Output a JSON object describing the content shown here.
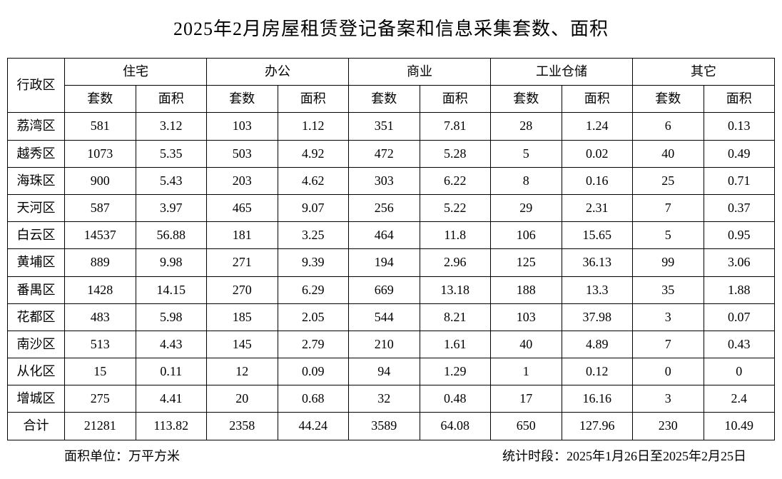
{
  "title": "2025年2月房屋租赁登记备案和信息采集套数、面积",
  "header": {
    "district": "行政区",
    "groups": [
      "住宅",
      "办公",
      "商业",
      "工业仓储",
      "其它"
    ],
    "sub": {
      "count": "套数",
      "area": "面积"
    }
  },
  "rows": [
    {
      "name": "荔湾区",
      "cells": [
        "581",
        "3.12",
        "103",
        "1.12",
        "351",
        "7.81",
        "28",
        "1.24",
        "6",
        "0.13"
      ]
    },
    {
      "name": "越秀区",
      "cells": [
        "1073",
        "5.35",
        "503",
        "4.92",
        "472",
        "5.28",
        "5",
        "0.02",
        "40",
        "0.49"
      ]
    },
    {
      "name": "海珠区",
      "cells": [
        "900",
        "5.43",
        "203",
        "4.62",
        "303",
        "6.22",
        "8",
        "0.16",
        "25",
        "0.71"
      ]
    },
    {
      "name": "天河区",
      "cells": [
        "587",
        "3.97",
        "465",
        "9.07",
        "256",
        "5.22",
        "29",
        "2.31",
        "7",
        "0.37"
      ]
    },
    {
      "name": "白云区",
      "cells": [
        "14537",
        "56.88",
        "181",
        "3.25",
        "464",
        "11.8",
        "106",
        "15.65",
        "5",
        "0.95"
      ]
    },
    {
      "name": "黄埔区",
      "cells": [
        "889",
        "9.98",
        "271",
        "9.39",
        "194",
        "2.96",
        "125",
        "36.13",
        "99",
        "3.06"
      ]
    },
    {
      "name": "番禺区",
      "cells": [
        "1428",
        "14.15",
        "270",
        "6.29",
        "669",
        "13.18",
        "188",
        "13.3",
        "35",
        "1.88"
      ]
    },
    {
      "name": "花都区",
      "cells": [
        "483",
        "5.98",
        "185",
        "2.05",
        "544",
        "8.21",
        "103",
        "37.98",
        "3",
        "0.07"
      ]
    },
    {
      "name": "南沙区",
      "cells": [
        "513",
        "4.43",
        "145",
        "2.79",
        "210",
        "1.61",
        "40",
        "4.89",
        "7",
        "0.43"
      ]
    },
    {
      "name": "从化区",
      "cells": [
        "15",
        "0.11",
        "12",
        "0.09",
        "94",
        "1.29",
        "1",
        "0.12",
        "0",
        "0"
      ]
    },
    {
      "name": "增城区",
      "cells": [
        "275",
        "4.41",
        "20",
        "0.68",
        "32",
        "0.48",
        "17",
        "16.16",
        "3",
        "2.4"
      ]
    },
    {
      "name": "合计",
      "cells": [
        "21281",
        "113.82",
        "2358",
        "44.24",
        "3589",
        "64.08",
        "650",
        "127.96",
        "230",
        "10.49"
      ]
    }
  ],
  "footer": {
    "unit": "面积单位：万平方米",
    "period": "统计时段：2025年1月26日至2025年2月25日"
  },
  "style": {
    "border_color": "#000000",
    "background_color": "#ffffff",
    "text_color": "#000000",
    "title_fontsize": 26,
    "cell_fontsize": 18,
    "footer_fontsize": 18
  }
}
